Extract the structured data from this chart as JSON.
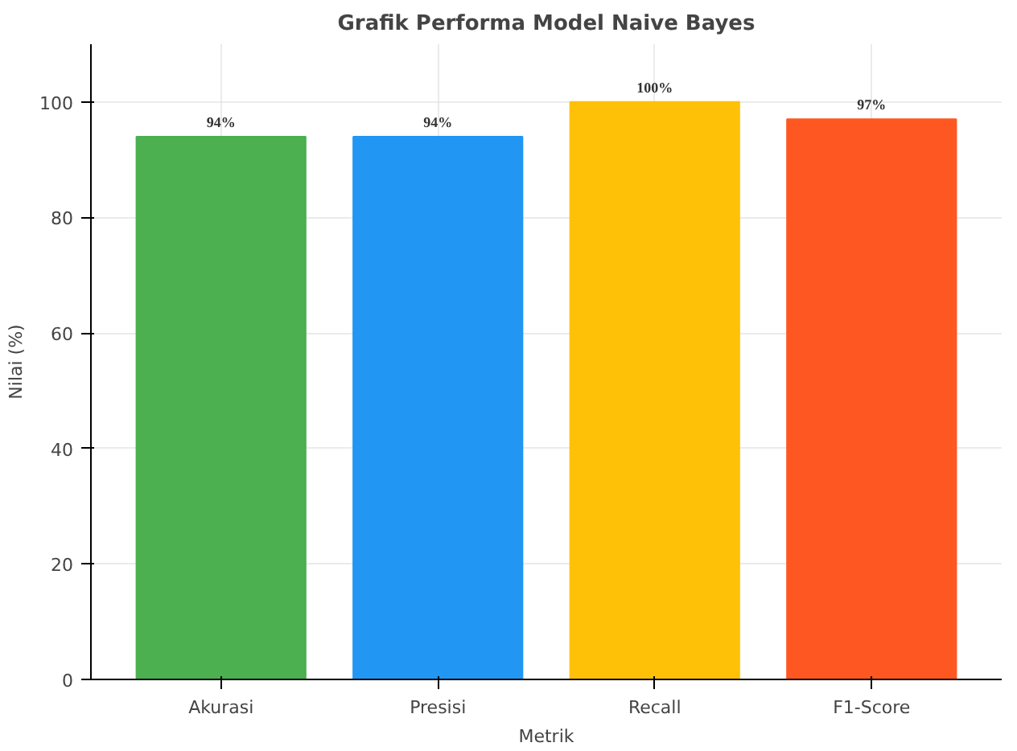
{
  "chart_data": {
    "type": "bar",
    "title": "Grafik Performa Model Naive Bayes",
    "xlabel": "Metrik",
    "ylabel": "Nilai (%)",
    "categories": [
      "Akurasi",
      "Presisi",
      "Recall",
      "F1-Score"
    ],
    "values": [
      94,
      94,
      100,
      97
    ],
    "colors": [
      "#4caf50",
      "#2196f3",
      "#ffc107",
      "#ff5722"
    ],
    "value_labels": [
      "94%",
      "94%",
      "100%",
      "97%"
    ],
    "ylim": [
      0,
      110
    ],
    "yticks": [
      0,
      20,
      40,
      60,
      80,
      100
    ],
    "grid": true
  }
}
